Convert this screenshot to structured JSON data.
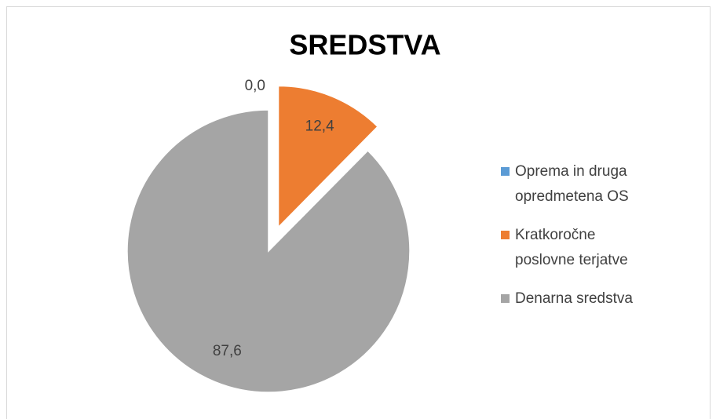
{
  "chart_data": {
    "type": "pie",
    "title": "SREDSTVA",
    "categories": [
      "Oprema in druga opredmetena OS",
      "Kratkoročne poslovne terjatve",
      "Denarna sredstva"
    ],
    "values": [
      0.0,
      12.4,
      87.6
    ],
    "value_labels": [
      "0,0",
      "12,4",
      "87,6"
    ],
    "colors": [
      "#5b9bd5",
      "#ed7d31",
      "#a5a5a5"
    ],
    "legend": "right"
  }
}
